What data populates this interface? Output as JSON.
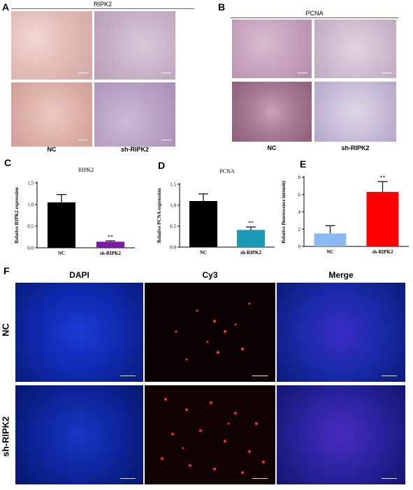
{
  "panels": {
    "A": {
      "letter": "A",
      "title": "RIPK2",
      "groups": [
        "NC",
        "sh-RIPK2"
      ]
    },
    "B": {
      "letter": "B",
      "title": "PCNA",
      "groups": [
        "NC",
        "sh-RIPK2"
      ]
    },
    "C": {
      "letter": "C"
    },
    "D": {
      "letter": "D"
    },
    "E": {
      "letter": "E"
    },
    "F": {
      "letter": "F",
      "columns": [
        "DAPI",
        "Cy3",
        "Merge"
      ],
      "rows": [
        "NC",
        "sh-RIPK2"
      ]
    }
  },
  "chart_data": [
    {
      "type": "bar",
      "title": "RIPK2",
      "ylabel": "Relative RIPK2 expression",
      "categories": [
        "NC",
        "sh-RIPK2"
      ],
      "values": [
        1.05,
        0.14
      ],
      "errors": [
        0.18,
        0.02
      ],
      "bar_colors": [
        "#000000",
        "#7a1aa0"
      ],
      "ylim": [
        0,
        1.5
      ],
      "yticks": [
        "0.0",
        "0.5",
        "1.0",
        "1.5"
      ],
      "significance": [
        "",
        "**"
      ]
    },
    {
      "type": "bar",
      "title": "PCNA",
      "ylabel": "Relative PCNA expression",
      "categories": [
        "NC",
        "sh-RIPK2"
      ],
      "values": [
        1.1,
        0.41
      ],
      "errors": [
        0.17,
        0.07
      ],
      "bar_colors": [
        "#000000",
        "#1b9ab5"
      ],
      "ylim": [
        0,
        1.5
      ],
      "yticks": [
        "0.0",
        "0.5",
        "1.0",
        "1.5"
      ],
      "significance": [
        "",
        "**"
      ]
    },
    {
      "type": "bar",
      "title": "",
      "ylabel": "Relative fluorescence intensity",
      "categories": [
        "NC",
        "sh-RIPK2"
      ],
      "values": [
        1.5,
        6.3
      ],
      "errors": [
        0.9,
        1.2
      ],
      "bar_colors": [
        "#8ab8f2",
        "#ff0000"
      ],
      "ylim": [
        0,
        8
      ],
      "yticks": [
        "0",
        "2",
        "4",
        "6",
        "8"
      ],
      "significance": [
        "",
        "**"
      ]
    }
  ]
}
